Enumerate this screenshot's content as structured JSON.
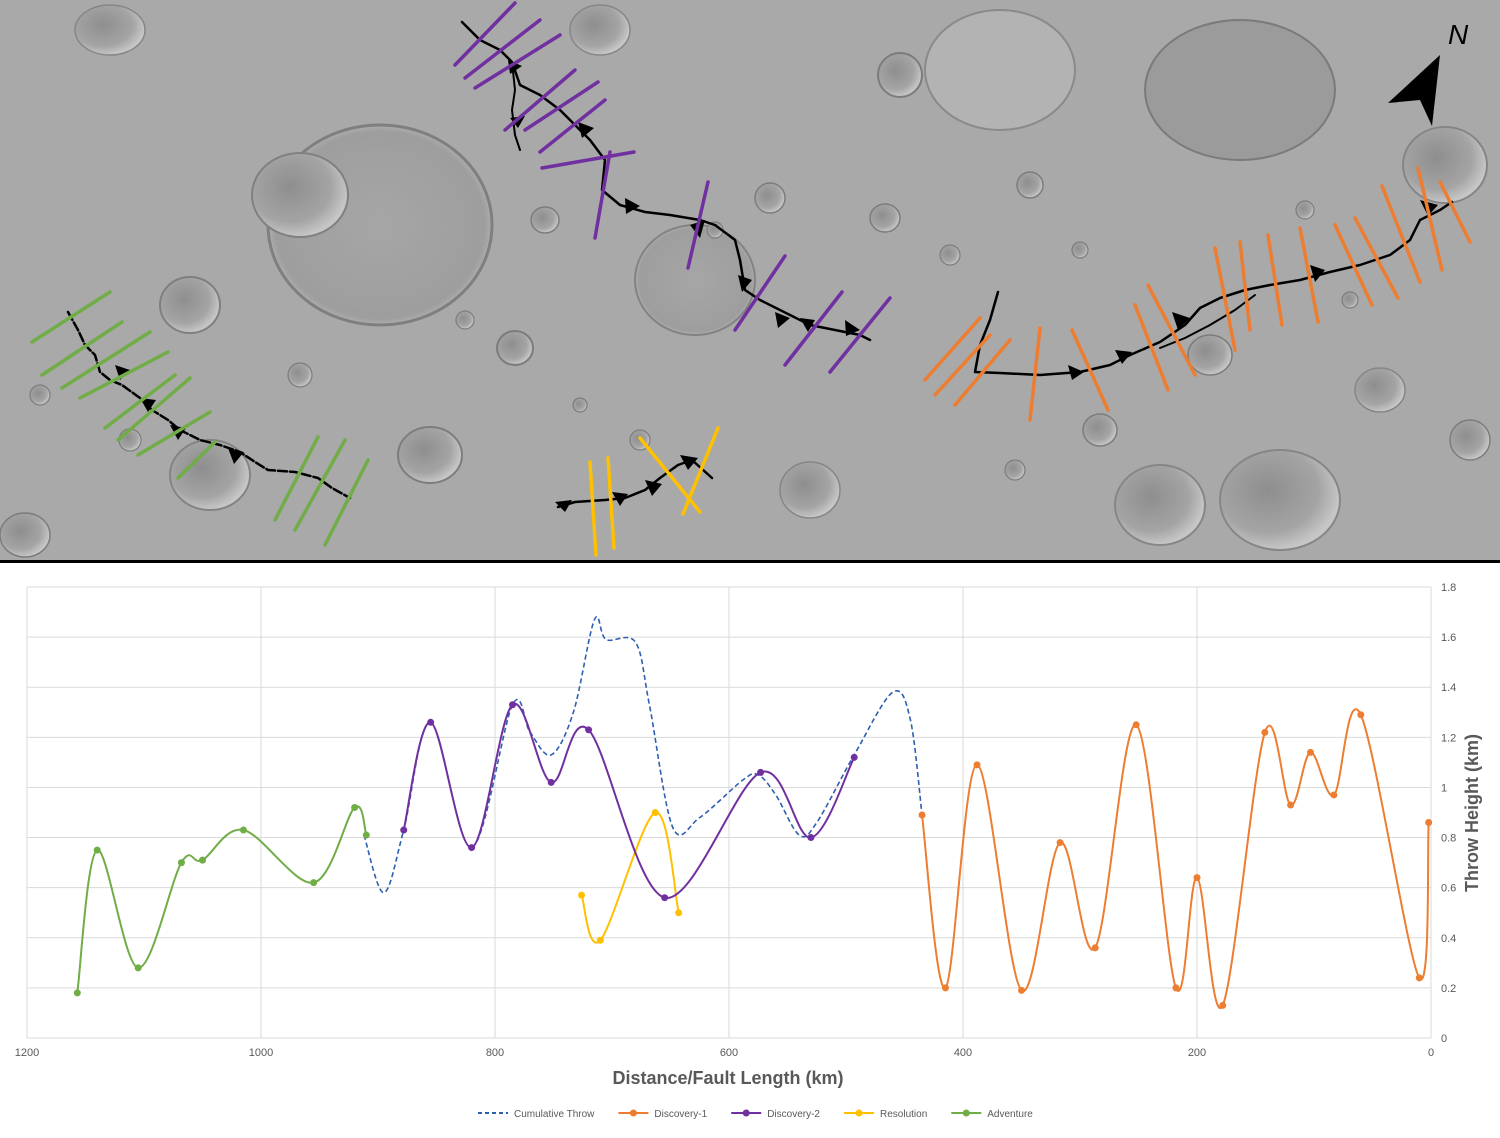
{
  "map": {
    "north_label": "N",
    "colors": {
      "fault": "#000000",
      "discovery1": "#ed7d31",
      "discovery2": "#7030a0",
      "resolution": "#ffc000",
      "adventure": "#70ad47"
    }
  },
  "chart_data": {
    "type": "line",
    "xlabel": "Distance/Fault Length (km)",
    "ylabel": "Throw Height (km)",
    "xlim": [
      1200,
      0
    ],
    "ylim": [
      0,
      1.8
    ],
    "x_reversed": true,
    "xticks": [
      "1200",
      "1000",
      "800",
      "600",
      "400",
      "200",
      "0"
    ],
    "yticks": [
      "0",
      "0.2",
      "0.4",
      "0.6",
      "0.8",
      "1",
      "1.2",
      "1.4",
      "1.6",
      "1.8"
    ],
    "grid": true,
    "legend_position": "bottom",
    "series": [
      {
        "name": "Cumulative Throw",
        "color": "#2e5fb0",
        "dashed": true,
        "markers": false,
        "points": [
          [
            912,
            0.81
          ],
          [
            895,
            0.58
          ],
          [
            878,
            0.83
          ],
          [
            855,
            1.26
          ],
          [
            820,
            0.76
          ],
          [
            785,
            1.33
          ],
          [
            770,
            1.22
          ],
          [
            752,
            1.13
          ],
          [
            733,
            1.3
          ],
          [
            715,
            1.67
          ],
          [
            705,
            1.59
          ],
          [
            680,
            1.58
          ],
          [
            668,
            1.33
          ],
          [
            648,
            0.84
          ],
          [
            625,
            0.88
          ],
          [
            588,
            1.03
          ],
          [
            575,
            1.05
          ],
          [
            560,
            0.97
          ],
          [
            540,
            0.81
          ],
          [
            525,
            0.86
          ],
          [
            493,
            1.13
          ],
          [
            460,
            1.38
          ],
          [
            445,
            1.27
          ],
          [
            435,
            0.89
          ]
        ]
      },
      {
        "name": "Discovery-1",
        "color": "#ed7d31",
        "dashed": false,
        "markers": true,
        "points": [
          [
            435,
            0.89
          ],
          [
            415,
            0.2
          ],
          [
            388,
            1.09
          ],
          [
            350,
            0.19
          ],
          [
            317,
            0.78
          ],
          [
            287,
            0.36
          ],
          [
            252,
            1.25
          ],
          [
            218,
            0.2
          ],
          [
            200,
            0.64
          ],
          [
            178,
            0.13
          ],
          [
            142,
            1.22
          ],
          [
            120,
            0.93
          ],
          [
            103,
            1.14
          ],
          [
            83,
            0.97
          ],
          [
            60,
            1.29
          ],
          [
            10,
            0.24
          ],
          [
            2,
            0.86
          ]
        ]
      },
      {
        "name": "Discovery-2",
        "color": "#7030a0",
        "dashed": false,
        "markers": true,
        "points": [
          [
            878,
            0.83
          ],
          [
            855,
            1.26
          ],
          [
            820,
            0.76
          ],
          [
            785,
            1.33
          ],
          [
            752,
            1.02
          ],
          [
            720,
            1.23
          ],
          [
            655,
            0.56
          ],
          [
            573,
            1.06
          ],
          [
            530,
            0.8
          ],
          [
            493,
            1.12
          ]
        ]
      },
      {
        "name": "Resolution",
        "color": "#ffc000",
        "dashed": false,
        "markers": true,
        "points": [
          [
            726,
            0.57
          ],
          [
            710,
            0.39
          ],
          [
            663,
            0.9
          ],
          [
            643,
            0.5
          ]
        ]
      },
      {
        "name": "Adventure",
        "color": "#70ad47",
        "dashed": false,
        "markers": true,
        "points": [
          [
            1157,
            0.18
          ],
          [
            1140,
            0.75
          ],
          [
            1105,
            0.28
          ],
          [
            1068,
            0.7
          ],
          [
            1050,
            0.71
          ],
          [
            1015,
            0.83
          ],
          [
            955,
            0.62
          ],
          [
            920,
            0.92
          ],
          [
            910,
            0.81
          ]
        ]
      }
    ]
  }
}
